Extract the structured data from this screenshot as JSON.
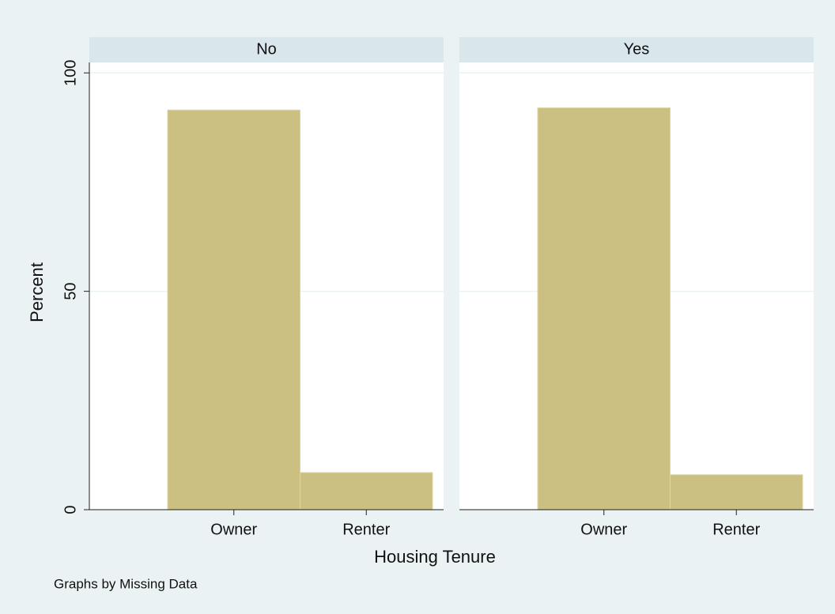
{
  "chart_data": {
    "type": "bar",
    "ylabel": "Percent",
    "xlabel": "Housing Tenure",
    "note": "Graphs by Missing Data",
    "categories": [
      "Owner",
      "Renter"
    ],
    "color": "#cbc081",
    "ylim": [
      0,
      102.4
    ],
    "yticks": [
      0,
      50,
      100
    ],
    "grid": true,
    "panels": [
      {
        "title": "No",
        "values": [
          91.5,
          8.5
        ]
      },
      {
        "title": "Yes",
        "values": [
          92,
          8
        ]
      }
    ]
  }
}
